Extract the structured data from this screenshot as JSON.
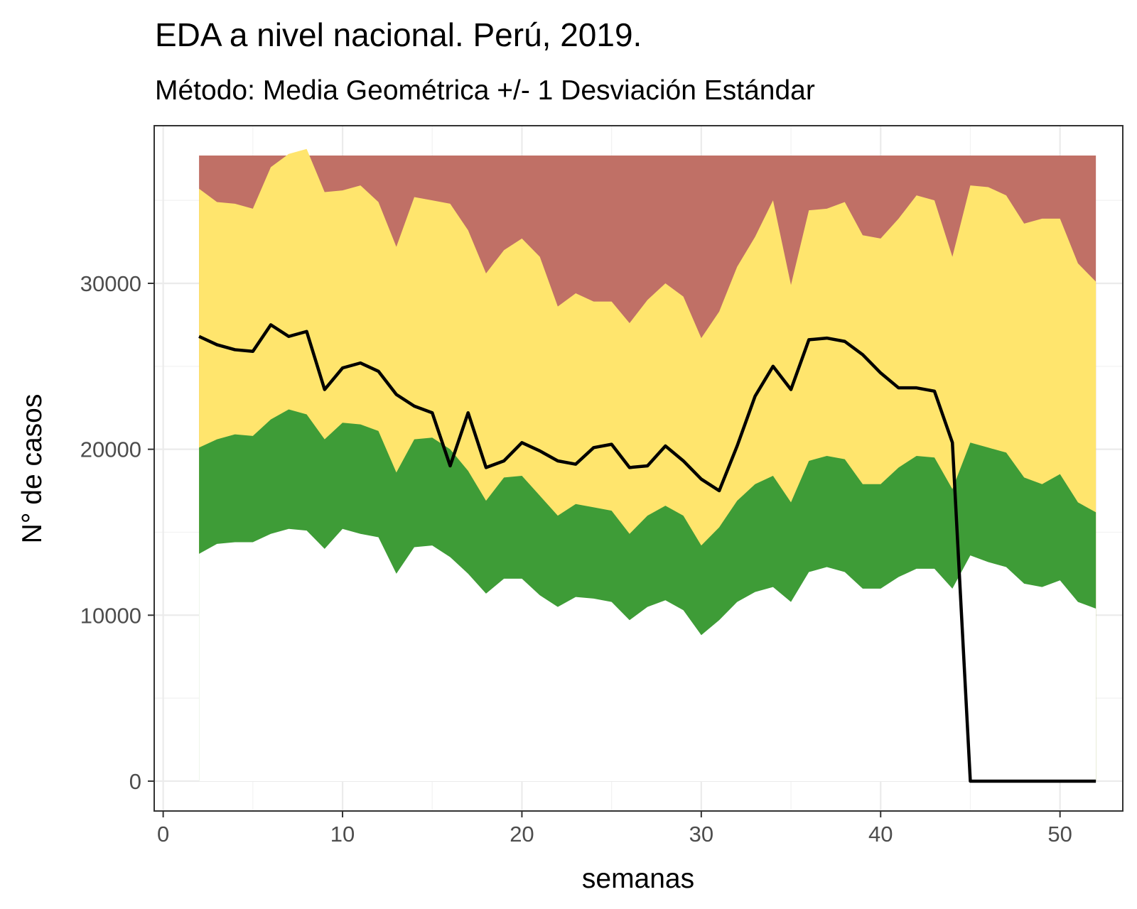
{
  "chart_data": {
    "type": "area",
    "title": "EDA a nivel nacional. Perú, 2019.",
    "subtitle": "Método: Media Geométrica +/- 1 Desviación Estándar",
    "xlabel": "semanas",
    "ylabel": "N° de casos",
    "xlim": [
      -0.5,
      53.5
    ],
    "ylim": [
      -1800,
      39500
    ],
    "xticks": [
      0,
      10,
      20,
      30,
      40,
      50
    ],
    "yticks": [
      0,
      10000,
      20000,
      30000
    ],
    "grid": true,
    "legend": "none",
    "x": [
      2,
      3,
      4,
      5,
      6,
      7,
      8,
      9,
      10,
      11,
      12,
      13,
      14,
      15,
      16,
      17,
      18,
      19,
      20,
      21,
      22,
      23,
      24,
      25,
      26,
      27,
      28,
      29,
      30,
      31,
      32,
      33,
      34,
      35,
      36,
      37,
      38,
      39,
      40,
      41,
      42,
      43,
      44,
      45,
      46,
      47,
      48,
      49,
      50,
      51,
      52
    ],
    "series": [
      {
        "values": [
          13700,
          14300,
          14400,
          14400,
          14900,
          15200,
          15100,
          14000,
          15200,
          14900,
          14700,
          12500,
          14100,
          14200,
          13500,
          12500,
          11300,
          12200,
          12200,
          11200,
          10500,
          11100,
          11000,
          10800,
          9700,
          10500,
          10900,
          10300,
          8800,
          9700,
          10800,
          11400,
          11700,
          10800,
          12600,
          12900,
          12600,
          11600,
          11600,
          12300,
          12800,
          12800,
          11600,
          13600,
          13200,
          12900,
          11900,
          11700,
          12100,
          10800,
          10400
        ],
        "color": "#ffffff"
      },
      {
        "values": [
          20100,
          20600,
          20900,
          20800,
          21800,
          22400,
          22100,
          20600,
          21600,
          21500,
          21100,
          18600,
          20600,
          20700,
          20000,
          18700,
          16900,
          18300,
          18400,
          17200,
          16000,
          16700,
          16500,
          16300,
          14900,
          16000,
          16600,
          16000,
          14200,
          15300,
          16900,
          17900,
          18400,
          16800,
          19300,
          19600,
          19400,
          17900,
          17900,
          18900,
          19600,
          19500,
          17600,
          20400,
          20100,
          19800,
          18300,
          17900,
          18500,
          16800,
          16200
        ],
        "color": "#3e9c37"
      },
      {
        "values": [
          35700,
          34900,
          34800,
          34500,
          37000,
          37800,
          38100,
          35500,
          35600,
          35900,
          34900,
          32200,
          35200,
          35000,
          34800,
          33200,
          30600,
          32000,
          32700,
          31600,
          28600,
          29400,
          28900,
          28900,
          27600,
          29000,
          30000,
          29200,
          26700,
          28300,
          31000,
          32800,
          35000,
          29900,
          34400,
          34500,
          34900,
          32900,
          32700,
          33900,
          35300,
          35000,
          31600,
          35900,
          35800,
          35300,
          33600,
          33900,
          33900,
          31200,
          30100
        ],
        "color": "#ffe56d"
      },
      {
        "values": [
          37700,
          37700,
          37700,
          37700,
          37700,
          37700,
          37700,
          37700,
          37700,
          37700,
          37700,
          37700,
          37700,
          37700,
          37700,
          37700,
          37700,
          37700,
          37700,
          37700,
          37700,
          37700,
          37700,
          37700,
          37700,
          37700,
          37700,
          37700,
          37700,
          37700,
          37700,
          37700,
          37700,
          37700,
          37700,
          37700,
          37700,
          37700,
          37700,
          37700,
          37700,
          37700,
          37700,
          37700,
          37700,
          37700,
          37700,
          37700,
          37700,
          37700,
          37700
        ],
        "color": "#c07066"
      },
      {
        "type": "line",
        "values": [
          26800,
          26300,
          26000,
          25900,
          27500,
          26800,
          27100,
          23600,
          24900,
          25200,
          24700,
          23300,
          22600,
          22200,
          19000,
          22200,
          18900,
          19300,
          20400,
          19900,
          19300,
          19100,
          20100,
          20300,
          18900,
          19000,
          20200,
          19300,
          18200,
          17500,
          20200,
          23200,
          25000,
          23600,
          26600,
          26700,
          26500,
          25700,
          24600,
          23700,
          23700,
          23500,
          20400,
          0,
          0,
          0,
          0,
          0,
          0,
          0,
          0
        ],
        "color": "#000000"
      }
    ]
  }
}
